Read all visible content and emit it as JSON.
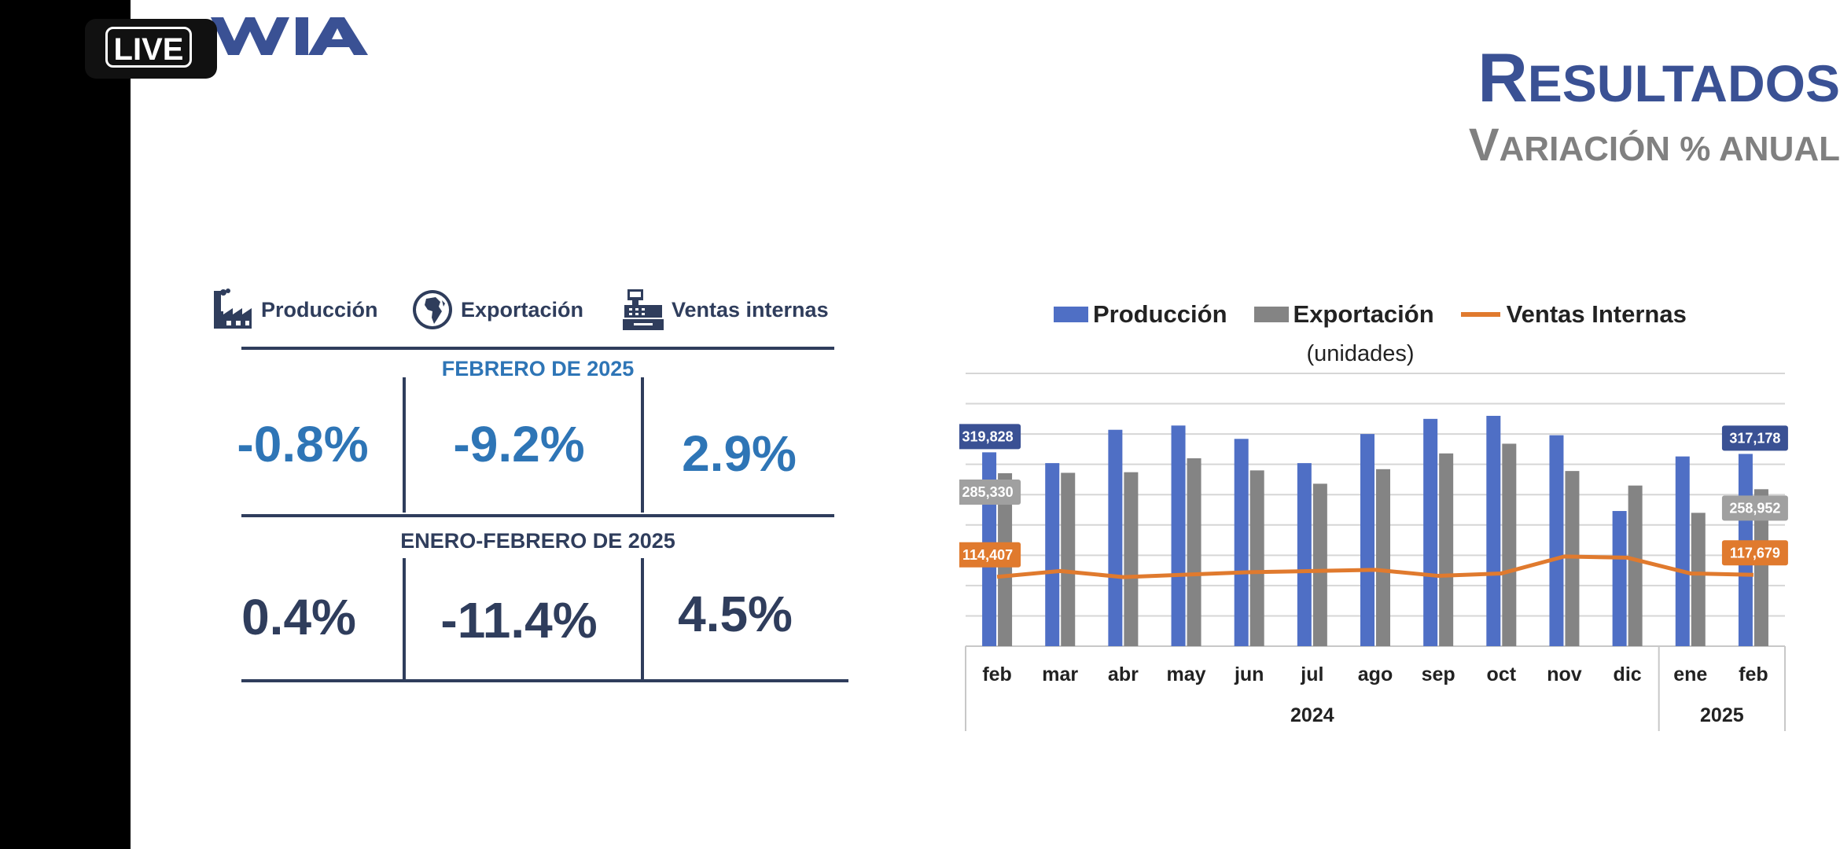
{
  "overlay": {
    "live_label": "LIVE"
  },
  "header": {
    "title_initial": "R",
    "title_rest": "ESULTADOS",
    "subtitle_initial": "V",
    "subtitle_rest": "ARIACIÓN % ANUAL"
  },
  "kpi": {
    "headers": [
      {
        "label": "Producción",
        "icon": "factory-icon"
      },
      {
        "label": "Exportación",
        "icon": "globe-icon"
      },
      {
        "label": "Ventas internas",
        "icon": "cash-register-icon"
      }
    ],
    "period1": {
      "label": "FEBRERO DE 2025",
      "values": [
        "-0.8%",
        "-9.2%",
        "2.9%"
      ]
    },
    "period2": {
      "label": "ENERO-FEBRERO DE 2025",
      "values": [
        "0.4%",
        "-11.4%",
        "4.5%"
      ]
    }
  },
  "colors": {
    "produccion": "#4f6fc5",
    "exportacion": "#848484",
    "ventas": "#e07a2e",
    "navy": "#2f3d5c",
    "blue": "#2e75b6"
  },
  "chart_data": {
    "type": "bar",
    "legend": [
      "Producción",
      "Exportación",
      "Ventas Internas"
    ],
    "subtitle": "(unidades)",
    "categories": [
      "feb",
      "mar",
      "abr",
      "may",
      "jun",
      "jul",
      "ago",
      "sep",
      "oct",
      "nov",
      "dic",
      "ene",
      "feb"
    ],
    "years": [
      {
        "label": "2024",
        "span": 11
      },
      {
        "label": "2025",
        "span": 2
      }
    ],
    "series": [
      {
        "name": "Producción",
        "type": "bar",
        "values": [
          319828,
          302000,
          357000,
          364000,
          342000,
          302000,
          350000,
          375000,
          380000,
          348000,
          223000,
          313000,
          317178
        ]
      },
      {
        "name": "Exportación",
        "type": "bar",
        "values": [
          285330,
          286000,
          287000,
          310000,
          290000,
          268000,
          292000,
          318000,
          334000,
          289000,
          265000,
          220000,
          258952
        ]
      },
      {
        "name": "Ventas Internas",
        "type": "line",
        "values": [
          114407,
          124000,
          114000,
          118000,
          122000,
          124000,
          126000,
          116000,
          120000,
          148000,
          146000,
          120000,
          117679
        ]
      }
    ],
    "data_labels": [
      {
        "series": 0,
        "index": 0,
        "text": "319,828"
      },
      {
        "series": 1,
        "index": 0,
        "text": "285,330"
      },
      {
        "series": 2,
        "index": 0,
        "text": "114,407"
      },
      {
        "series": 0,
        "index": 12,
        "text": "317,178"
      },
      {
        "series": 1,
        "index": 12,
        "text": "258,952"
      },
      {
        "series": 2,
        "index": 12,
        "text": "117,679"
      }
    ],
    "ylim": [
      0,
      450000
    ],
    "grid": true
  }
}
